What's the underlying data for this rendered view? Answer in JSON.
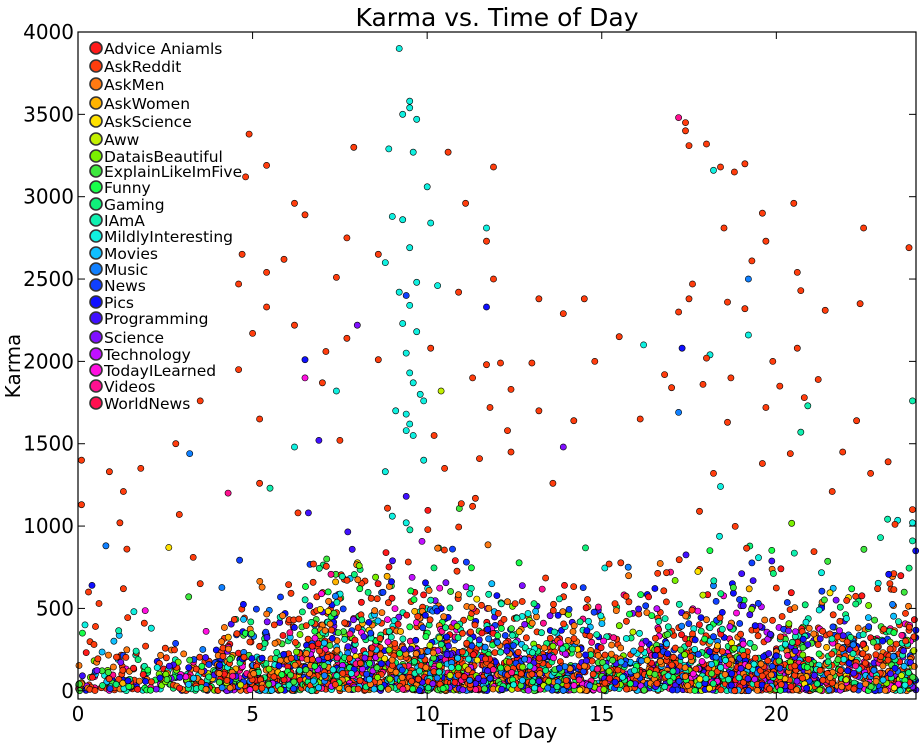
{
  "chart_data": {
    "type": "scatter",
    "title": "Karma vs. Time of Day",
    "xlabel": "Time of Day",
    "ylabel": "Karma",
    "xlim": [
      0,
      24
    ],
    "ylim": [
      -50,
      4000
    ],
    "xticks": [
      0,
      5,
      10,
      15,
      20
    ],
    "yticks": [
      0,
      500,
      1000,
      1500,
      2000,
      2500,
      3000,
      3500,
      4000
    ],
    "grid": false,
    "legend_position": "top-left",
    "series": [
      {
        "name": "Advice Aniamls",
        "color": "#ff1a1a"
      },
      {
        "name": " AskReddit",
        "color": "#ff3d0d"
      },
      {
        "name": "AskMen",
        "color": "#ff7a12"
      },
      {
        "name": " AskWomen",
        "color": "#ffb300"
      },
      {
        "name": " AskScience",
        "color": "#ffe100"
      },
      {
        "name": "Aww",
        "color": "#c2f000"
      },
      {
        "name": "DataisBeautiful",
        "color": "#7af000"
      },
      {
        "name": "ExplainLikeImFive",
        "color": "#3ee83e"
      },
      {
        "name": "Funny",
        "color": "#18ff4a"
      },
      {
        "name": "Gaming",
        "color": "#10f07a"
      },
      {
        "name": "IAmA",
        "color": "#10f0b0"
      },
      {
        "name": "MildlyInteresting",
        "color": "#10f0e0"
      },
      {
        "name": "Movies",
        "color": "#10c0ff"
      },
      {
        "name": "Music",
        "color": "#1080ff"
      },
      {
        "name": "News",
        "color": "#1040ff"
      },
      {
        "name": "Pics",
        "color": "#1010ff"
      },
      {
        "name": "Programming",
        "color": "#4010ff"
      },
      {
        "name": "Science",
        "color": "#8010ff"
      },
      {
        "name": "Technology",
        "color": "#c010ff"
      },
      {
        "name": "TodayILearned",
        "color": "#ff10e0"
      },
      {
        "name": "Videos",
        "color": "#ff1090"
      },
      {
        "name": "WorldNews",
        "color": "#ff1050"
      }
    ],
    "points": [
      {
        "x": 9.2,
        "y": 3900,
        "s": 11
      },
      {
        "x": 9.5,
        "y": 3580,
        "s": 11
      },
      {
        "x": 9.5,
        "y": 3540,
        "s": 11
      },
      {
        "x": 9.3,
        "y": 3500,
        "s": 11
      },
      {
        "x": 9.7,
        "y": 3470,
        "s": 11
      },
      {
        "x": 17.2,
        "y": 3480,
        "s": 20
      },
      {
        "x": 17.4,
        "y": 3450,
        "s": 1
      },
      {
        "x": 17.4,
        "y": 3400,
        "s": 1
      },
      {
        "x": 4.9,
        "y": 3380,
        "s": 1
      },
      {
        "x": 8.9,
        "y": 3290,
        "s": 11
      },
      {
        "x": 9.6,
        "y": 3270,
        "s": 11
      },
      {
        "x": 10.6,
        "y": 3270,
        "s": 1
      },
      {
        "x": 17.5,
        "y": 3310,
        "s": 1
      },
      {
        "x": 18.0,
        "y": 3320,
        "s": 1
      },
      {
        "x": 7.9,
        "y": 3300,
        "s": 1
      },
      {
        "x": 19.1,
        "y": 3200,
        "s": 1
      },
      {
        "x": 5.4,
        "y": 3190,
        "s": 1
      },
      {
        "x": 11.9,
        "y": 3180,
        "s": 1
      },
      {
        "x": 18.4,
        "y": 3180,
        "s": 1
      },
      {
        "x": 18.2,
        "y": 3160,
        "s": 11
      },
      {
        "x": 18.8,
        "y": 3150,
        "s": 1
      },
      {
        "x": 4.8,
        "y": 3120,
        "s": 1
      },
      {
        "x": 10.0,
        "y": 3060,
        "s": 11
      },
      {
        "x": 20.5,
        "y": 2960,
        "s": 1
      },
      {
        "x": 6.2,
        "y": 2960,
        "s": 1
      },
      {
        "x": 11.1,
        "y": 2960,
        "s": 1
      },
      {
        "x": 19.6,
        "y": 2900,
        "s": 1
      },
      {
        "x": 9.0,
        "y": 2880,
        "s": 11
      },
      {
        "x": 9.3,
        "y": 2860,
        "s": 11
      },
      {
        "x": 10.1,
        "y": 2840,
        "s": 11
      },
      {
        "x": 6.5,
        "y": 2890,
        "s": 1
      },
      {
        "x": 11.7,
        "y": 2810,
        "s": 11
      },
      {
        "x": 18.5,
        "y": 2810,
        "s": 1
      },
      {
        "x": 22.5,
        "y": 2810,
        "s": 1
      },
      {
        "x": 7.7,
        "y": 2750,
        "s": 1
      },
      {
        "x": 11.7,
        "y": 2730,
        "s": 1
      },
      {
        "x": 19.7,
        "y": 2730,
        "s": 1
      },
      {
        "x": 23.8,
        "y": 2690,
        "s": 1
      },
      {
        "x": 9.5,
        "y": 2690,
        "s": 11
      },
      {
        "x": 4.7,
        "y": 2650,
        "s": 1
      },
      {
        "x": 8.6,
        "y": 2650,
        "s": 1
      },
      {
        "x": 5.9,
        "y": 2620,
        "s": 1
      },
      {
        "x": 8.8,
        "y": 2600,
        "s": 11
      },
      {
        "x": 19.3,
        "y": 2610,
        "s": 1
      },
      {
        "x": 5.4,
        "y": 2540,
        "s": 1
      },
      {
        "x": 20.6,
        "y": 2540,
        "s": 1
      },
      {
        "x": 7.4,
        "y": 2510,
        "s": 1
      },
      {
        "x": 11.9,
        "y": 2500,
        "s": 1
      },
      {
        "x": 19.2,
        "y": 2500,
        "s": 13
      },
      {
        "x": 9.7,
        "y": 2480,
        "s": 11
      },
      {
        "x": 10.3,
        "y": 2460,
        "s": 11
      },
      {
        "x": 17.6,
        "y": 2470,
        "s": 1
      },
      {
        "x": 4.6,
        "y": 2470,
        "s": 1
      },
      {
        "x": 9.2,
        "y": 2420,
        "s": 11
      },
      {
        "x": 10.9,
        "y": 2420,
        "s": 1
      },
      {
        "x": 20.7,
        "y": 2430,
        "s": 1
      },
      {
        "x": 9.4,
        "y": 2400,
        "s": 14
      },
      {
        "x": 9.5,
        "y": 2340,
        "s": 11
      },
      {
        "x": 5.4,
        "y": 2330,
        "s": 1
      },
      {
        "x": 13.2,
        "y": 2380,
        "s": 1
      },
      {
        "x": 14.5,
        "y": 2380,
        "s": 1
      },
      {
        "x": 17.5,
        "y": 2380,
        "s": 1
      },
      {
        "x": 18.6,
        "y": 2360,
        "s": 1
      },
      {
        "x": 11.7,
        "y": 2330,
        "s": 15
      },
      {
        "x": 19.1,
        "y": 2320,
        "s": 1
      },
      {
        "x": 21.4,
        "y": 2310,
        "s": 1
      },
      {
        "x": 22.4,
        "y": 2350,
        "s": 1
      },
      {
        "x": 13.9,
        "y": 2290,
        "s": 1
      },
      {
        "x": 17.2,
        "y": 2300,
        "s": 1
      },
      {
        "x": 9.3,
        "y": 2230,
        "s": 11
      },
      {
        "x": 8.0,
        "y": 2220,
        "s": 17
      },
      {
        "x": 6.2,
        "y": 2220,
        "s": 1
      },
      {
        "x": 19.2,
        "y": 2160,
        "s": 11
      },
      {
        "x": 5.0,
        "y": 2170,
        "s": 1
      },
      {
        "x": 7.1,
        "y": 2060,
        "s": 1
      },
      {
        "x": 7.7,
        "y": 2140,
        "s": 1
      },
      {
        "x": 9.7,
        "y": 2180,
        "s": 11
      },
      {
        "x": 15.5,
        "y": 2150,
        "s": 1
      },
      {
        "x": 16.2,
        "y": 2100,
        "s": 11
      },
      {
        "x": 17.3,
        "y": 2080,
        "s": 15
      },
      {
        "x": 18.1,
        "y": 2040,
        "s": 11
      },
      {
        "x": 20.6,
        "y": 2080,
        "s": 1
      },
      {
        "x": 10.1,
        "y": 2080,
        "s": 1
      },
      {
        "x": 8.6,
        "y": 2010,
        "s": 1
      },
      {
        "x": 9.4,
        "y": 2050,
        "s": 11
      },
      {
        "x": 12.1,
        "y": 1990,
        "s": 1
      },
      {
        "x": 13.0,
        "y": 1990,
        "s": 1
      },
      {
        "x": 18.0,
        "y": 2020,
        "s": 1
      },
      {
        "x": 6.5,
        "y": 2010,
        "s": 15
      },
      {
        "x": 4.6,
        "y": 1950,
        "s": 1
      },
      {
        "x": 11.7,
        "y": 1980,
        "s": 1
      },
      {
        "x": 14.8,
        "y": 2000,
        "s": 1
      },
      {
        "x": 19.9,
        "y": 2000,
        "s": 1
      },
      {
        "x": 9.5,
        "y": 1930,
        "s": 11
      },
      {
        "x": 9.6,
        "y": 1870,
        "s": 11
      },
      {
        "x": 6.5,
        "y": 1900,
        "s": 19
      },
      {
        "x": 7.0,
        "y": 1870,
        "s": 1
      },
      {
        "x": 11.3,
        "y": 1900,
        "s": 1
      },
      {
        "x": 16.8,
        "y": 1920,
        "s": 1
      },
      {
        "x": 18.7,
        "y": 1900,
        "s": 1
      },
      {
        "x": 21.2,
        "y": 1890,
        "s": 1
      },
      {
        "x": 10.4,
        "y": 1820,
        "s": 5
      },
      {
        "x": 9.8,
        "y": 1800,
        "s": 11
      },
      {
        "x": 9.9,
        "y": 1760,
        "s": 11
      },
      {
        "x": 12.4,
        "y": 1830,
        "s": 1
      },
      {
        "x": 17.0,
        "y": 1840,
        "s": 1
      },
      {
        "x": 20.1,
        "y": 1850,
        "s": 1
      },
      {
        "x": 3.5,
        "y": 1760,
        "s": 1
      },
      {
        "x": 7.4,
        "y": 1820,
        "s": 11
      },
      {
        "x": 17.9,
        "y": 1860,
        "s": 1
      },
      {
        "x": 20.8,
        "y": 1780,
        "s": 1
      },
      {
        "x": 23.9,
        "y": 1760,
        "s": 10
      },
      {
        "x": 9.1,
        "y": 1700,
        "s": 11
      },
      {
        "x": 9.4,
        "y": 1680,
        "s": 11
      },
      {
        "x": 11.8,
        "y": 1720,
        "s": 1
      },
      {
        "x": 13.2,
        "y": 1700,
        "s": 1
      },
      {
        "x": 17.2,
        "y": 1690,
        "s": 13
      },
      {
        "x": 19.7,
        "y": 1720,
        "s": 1
      },
      {
        "x": 20.9,
        "y": 1730,
        "s": 10
      },
      {
        "x": 5.2,
        "y": 1650,
        "s": 1
      },
      {
        "x": 9.5,
        "y": 1620,
        "s": 11
      },
      {
        "x": 14.2,
        "y": 1640,
        "s": 1
      },
      {
        "x": 16.1,
        "y": 1650,
        "s": 1
      },
      {
        "x": 18.6,
        "y": 1630,
        "s": 1
      },
      {
        "x": 22.3,
        "y": 1640,
        "s": 1
      },
      {
        "x": 9.4,
        "y": 1580,
        "s": 11
      },
      {
        "x": 9.6,
        "y": 1550,
        "s": 11
      },
      {
        "x": 10.2,
        "y": 1550,
        "s": 1
      },
      {
        "x": 12.3,
        "y": 1580,
        "s": 1
      },
      {
        "x": 20.7,
        "y": 1570,
        "s": 10
      },
      {
        "x": 6.9,
        "y": 1520,
        "s": 16
      },
      {
        "x": 7.5,
        "y": 1520,
        "s": 1
      },
      {
        "x": 13.9,
        "y": 1480,
        "s": 17
      },
      {
        "x": 2.8,
        "y": 1500,
        "s": 1
      },
      {
        "x": 3.2,
        "y": 1440,
        "s": 13
      },
      {
        "x": 6.2,
        "y": 1480,
        "s": 11
      },
      {
        "x": 12.4,
        "y": 1450,
        "s": 1
      },
      {
        "x": 20.4,
        "y": 1440,
        "s": 1
      },
      {
        "x": 21.9,
        "y": 1450,
        "s": 1
      },
      {
        "x": 0.1,
        "y": 1400,
        "s": 1
      },
      {
        "x": 1.8,
        "y": 1350,
        "s": 1
      },
      {
        "x": 9.9,
        "y": 1400,
        "s": 11
      },
      {
        "x": 11.5,
        "y": 1410,
        "s": 1
      },
      {
        "x": 19.6,
        "y": 1380,
        "s": 1
      },
      {
        "x": 23.2,
        "y": 1390,
        "s": 1
      },
      {
        "x": 0.9,
        "y": 1330,
        "s": 1
      },
      {
        "x": 8.8,
        "y": 1330,
        "s": 11
      },
      {
        "x": 10.5,
        "y": 1350,
        "s": 1
      },
      {
        "x": 18.2,
        "y": 1320,
        "s": 1
      },
      {
        "x": 22.7,
        "y": 1320,
        "s": 1
      },
      {
        "x": 5.2,
        "y": 1260,
        "s": 1
      },
      {
        "x": 5.5,
        "y": 1230,
        "s": 10
      },
      {
        "x": 1.3,
        "y": 1210,
        "s": 1
      },
      {
        "x": 4.3,
        "y": 1200,
        "s": 20
      },
      {
        "x": 13.6,
        "y": 1260,
        "s": 1
      },
      {
        "x": 18.4,
        "y": 1240,
        "s": 11
      },
      {
        "x": 21.6,
        "y": 1210,
        "s": 1
      },
      {
        "x": 0.1,
        "y": 1130,
        "s": 1
      },
      {
        "x": 2.9,
        "y": 1070,
        "s": 1
      },
      {
        "x": 6.3,
        "y": 1080,
        "s": 1
      },
      {
        "x": 6.6,
        "y": 1080,
        "s": 16
      },
      {
        "x": 9.0,
        "y": 1060,
        "s": 11
      },
      {
        "x": 11.3,
        "y": 1120,
        "s": 1
      },
      {
        "x": 17.8,
        "y": 1090,
        "s": 1
      },
      {
        "x": 23.9,
        "y": 1100,
        "s": 1
      },
      {
        "x": 1.2,
        "y": 1020,
        "s": 1
      },
      {
        "x": 9.4,
        "y": 1020,
        "s": 11
      },
      {
        "x": 23.4,
        "y": 1010,
        "s": 1
      },
      {
        "x": 23.9,
        "y": 1020,
        "s": 11
      },
      {
        "x": 0.8,
        "y": 880,
        "s": 13
      },
      {
        "x": 1.4,
        "y": 860,
        "s": 1
      },
      {
        "x": 2.6,
        "y": 870,
        "s": 4
      },
      {
        "x": 3.3,
        "y": 810,
        "s": 1
      },
      {
        "x": 23.9,
        "y": 910,
        "s": 10
      },
      {
        "x": 1.3,
        "y": 620,
        "s": 1
      },
      {
        "x": 0.3,
        "y": 600,
        "s": 1
      },
      {
        "x": 0.4,
        "y": 640,
        "s": 15
      },
      {
        "x": 3.5,
        "y": 650,
        "s": 1
      },
      {
        "x": 22.9,
        "y": 620,
        "s": 1
      },
      {
        "x": 0.6,
        "y": 530,
        "s": 1
      },
      {
        "x": 1.6,
        "y": 480,
        "s": 11
      },
      {
        "x": 23.7,
        "y": 470,
        "s": 1
      },
      {
        "x": 0.2,
        "y": 400,
        "s": 11
      },
      {
        "x": 0.5,
        "y": 390,
        "s": 1
      },
      {
        "x": 1.9,
        "y": 410,
        "s": 1
      },
      {
        "x": 2.1,
        "y": 380,
        "s": 11
      },
      {
        "x": 23.5,
        "y": 420,
        "s": 10
      }
    ],
    "cloud_density": [
      {
        "x_range": [
          0,
          4
        ],
        "count": 260,
        "scale": 110,
        "ymax": 900
      },
      {
        "x_range": [
          4,
          6.5
        ],
        "count": 380,
        "scale": 150,
        "ymax": 1300
      },
      {
        "x_range": [
          6.5,
          12
        ],
        "count": 1200,
        "scale": 210,
        "ymax": 1800
      },
      {
        "x_range": [
          12,
          16.5
        ],
        "count": 700,
        "scale": 170,
        "ymax": 1300
      },
      {
        "x_range": [
          16.5,
          24
        ],
        "count": 1300,
        "scale": 190,
        "ymax": 1600
      }
    ]
  }
}
